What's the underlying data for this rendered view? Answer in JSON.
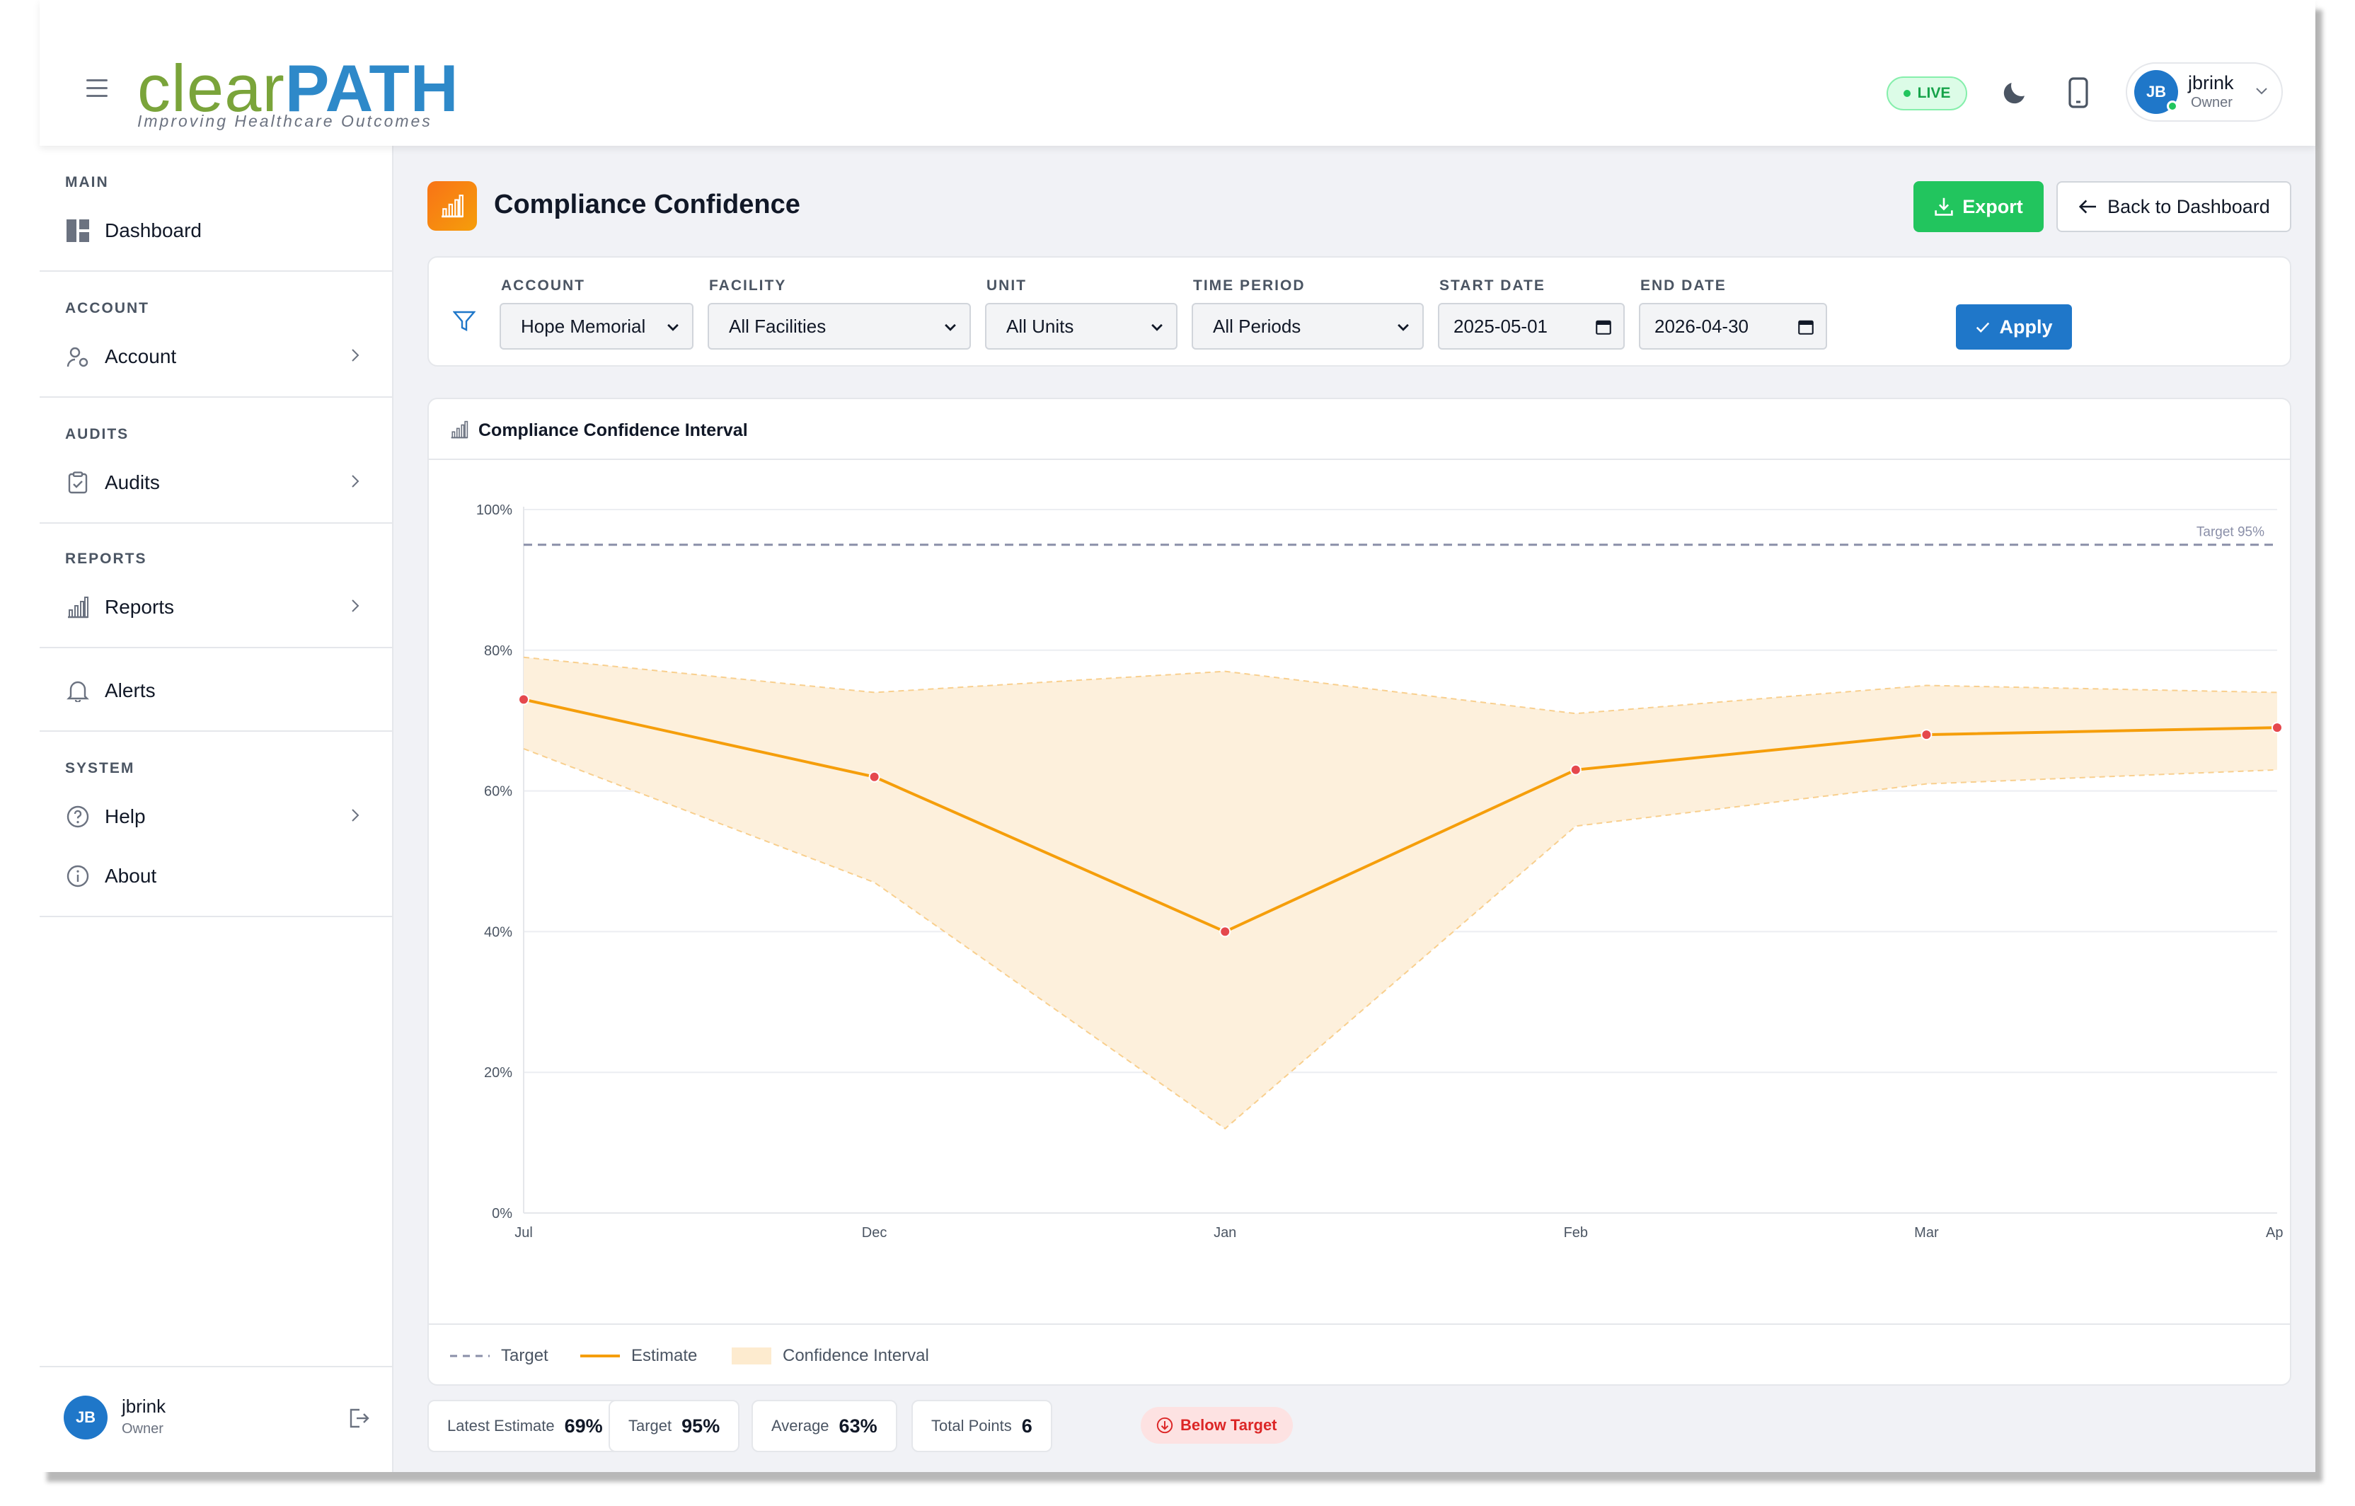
{
  "header": {
    "logo_clear": "clear",
    "logo_path": "PATH",
    "logo_tagline": "Improving Healthcare Outcomes",
    "live_label": "LIVE",
    "user": {
      "initials": "JB",
      "name": "jbrink",
      "role": "Owner"
    }
  },
  "sidebar": {
    "sections": {
      "main": "MAIN",
      "account": "ACCOUNT",
      "audits": "AUDITS",
      "reports": "REPORTS",
      "system": "SYSTEM"
    },
    "items": {
      "dashboard": "Dashboard",
      "account": "Account",
      "audits": "Audits",
      "reports": "Reports",
      "alerts": "Alerts",
      "help": "Help",
      "about": "About"
    },
    "footer_user": {
      "initials": "JB",
      "name": "jbrink",
      "role": "Owner"
    }
  },
  "page": {
    "title": "Compliance Confidence",
    "export_label": "Export",
    "back_label": "Back to Dashboard"
  },
  "filters": {
    "account_label": "ACCOUNT",
    "account_value": "Hope Memorial",
    "facility_label": "FACILITY",
    "facility_value": "All Facilities",
    "unit_label": "UNIT",
    "unit_value": "All Units",
    "period_label": "TIME PERIOD",
    "period_value": "All Periods",
    "start_label": "START DATE",
    "start_value": "2025-05-01",
    "end_label": "END DATE",
    "end_value": "2026-04-30",
    "apply_label": "Apply"
  },
  "chart_card": {
    "title": "Compliance Confidence Interval"
  },
  "chart_data": {
    "type": "line",
    "x": [
      "Jul",
      "Dec",
      "Jan",
      "Feb",
      "Mar",
      "Ap"
    ],
    "series": [
      {
        "name": "Estimate",
        "values": [
          73,
          62,
          40,
          63,
          68,
          69
        ],
        "color": "#f59e0b"
      },
      {
        "name": "Confidence Interval",
        "lower": [
          66,
          47,
          12,
          55,
          61,
          63
        ],
        "upper": [
          79,
          74,
          77,
          71,
          75,
          74
        ],
        "color": "#fdf0dc"
      },
      {
        "name": "Target",
        "value": 95,
        "color": "#8a8fa8"
      }
    ],
    "target_label": "Target 95%",
    "y_ticks": [
      "0%",
      "20%",
      "40%",
      "60%",
      "80%",
      "100%"
    ],
    "ylim": [
      0,
      100
    ],
    "grid": true,
    "legend": "bottom-left",
    "point_color": "#e5484d"
  },
  "stats": {
    "latest_label": "Latest Estimate",
    "latest_value": "69%",
    "target_label": "Target",
    "target_value": "95%",
    "average_label": "Average",
    "average_value": "63%",
    "points_label": "Total Points",
    "points_value": "6",
    "status_label": "Below Target"
  }
}
